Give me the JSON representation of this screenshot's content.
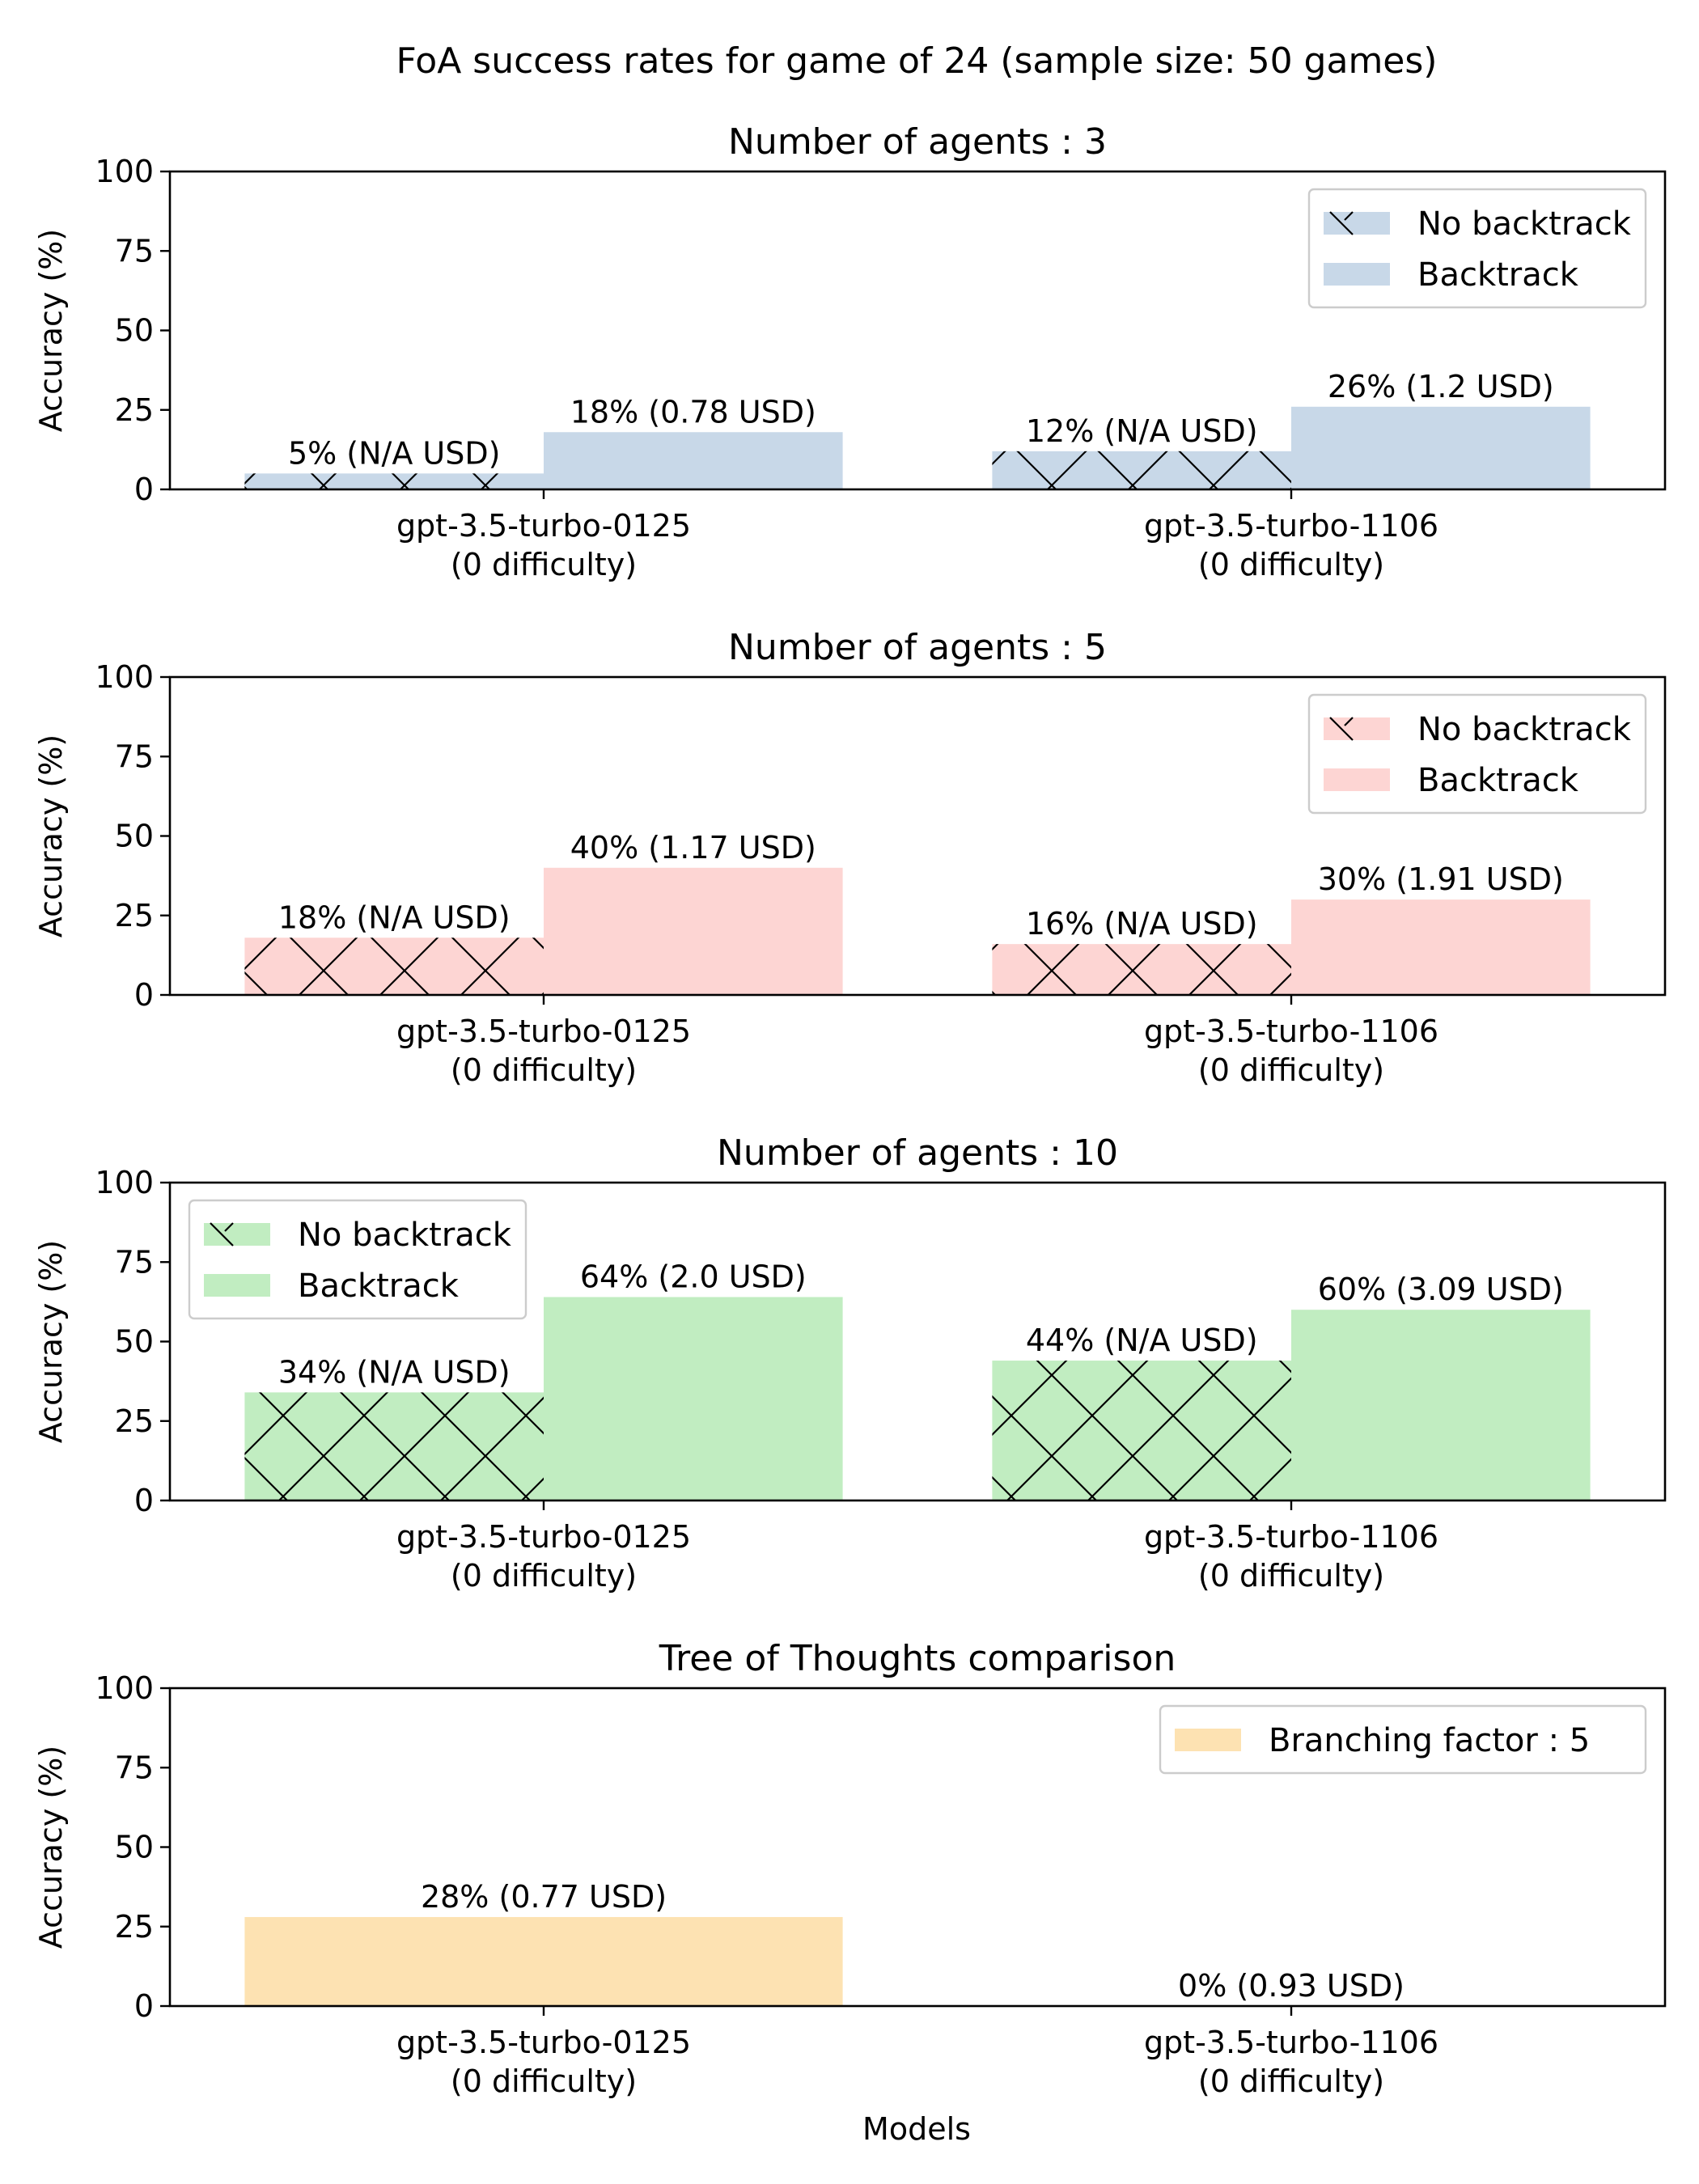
{
  "title": "FoA success rates for game of 24 (sample size: 50 games)",
  "xlabel": "Models",
  "colors": {
    "blue": "#c8d8e8",
    "red": "#fdd5d3",
    "green": "#c1edc1",
    "orange": "#fde2b2",
    "hatch": "#000000",
    "axis": "#000000",
    "legend_border": "#cccccc"
  },
  "chart_data": [
    {
      "type": "bar",
      "title": "Number of agents : 3",
      "ylabel": "Accuracy (%)",
      "ylim": [
        0,
        100
      ],
      "yticks": [
        0,
        25,
        50,
        75,
        100
      ],
      "categories": [
        "gpt-3.5-turbo-0125\n(0 difficulty)",
        "gpt-3.5-turbo-1106\n(0 difficulty)"
      ],
      "color": "blue",
      "legend": "top-right",
      "series": [
        {
          "name": "No backtrack",
          "hatch": true,
          "values": [
            5,
            12
          ],
          "labels": [
            "5% (N/A USD)",
            "12% (N/A USD)"
          ]
        },
        {
          "name": "Backtrack",
          "hatch": false,
          "values": [
            18,
            26
          ],
          "labels": [
            "18% (0.78 USD)",
            "26% (1.2 USD)"
          ]
        }
      ]
    },
    {
      "type": "bar",
      "title": "Number of agents : 5",
      "ylabel": "Accuracy (%)",
      "ylim": [
        0,
        100
      ],
      "yticks": [
        0,
        25,
        50,
        75,
        100
      ],
      "categories": [
        "gpt-3.5-turbo-0125\n(0 difficulty)",
        "gpt-3.5-turbo-1106\n(0 difficulty)"
      ],
      "color": "red",
      "legend": "top-right",
      "series": [
        {
          "name": "No backtrack",
          "hatch": true,
          "values": [
            18,
            16
          ],
          "labels": [
            "18% (N/A USD)",
            "16% (N/A USD)"
          ]
        },
        {
          "name": "Backtrack",
          "hatch": false,
          "values": [
            40,
            30
          ],
          "labels": [
            "40% (1.17 USD)",
            "30% (1.91 USD)"
          ]
        }
      ]
    },
    {
      "type": "bar",
      "title": "Number of agents : 10",
      "ylabel": "Accuracy (%)",
      "ylim": [
        0,
        100
      ],
      "yticks": [
        0,
        25,
        50,
        75,
        100
      ],
      "categories": [
        "gpt-3.5-turbo-0125\n(0 difficulty)",
        "gpt-3.5-turbo-1106\n(0 difficulty)"
      ],
      "color": "green",
      "legend": "top-left",
      "series": [
        {
          "name": "No backtrack",
          "hatch": true,
          "values": [
            34,
            44
          ],
          "labels": [
            "34% (N/A USD)",
            "44% (N/A USD)"
          ]
        },
        {
          "name": "Backtrack",
          "hatch": false,
          "values": [
            64,
            60
          ],
          "labels": [
            "64% (2.0 USD)",
            "60% (3.09 USD)"
          ]
        }
      ]
    },
    {
      "type": "bar",
      "title": "Tree of Thoughts comparison",
      "ylabel": "Accuracy (%)",
      "ylim": [
        0,
        100
      ],
      "yticks": [
        0,
        25,
        50,
        75,
        100
      ],
      "categories": [
        "gpt-3.5-turbo-0125\n(0 difficulty)",
        "gpt-3.5-turbo-1106\n(0 difficulty)"
      ],
      "color": "orange",
      "legend": "top-right",
      "series": [
        {
          "name": "Branching factor : 5",
          "hatch": false,
          "values": [
            28,
            0
          ],
          "labels": [
            "28% (0.77 USD)",
            "0% (0.93 USD)"
          ]
        }
      ]
    }
  ]
}
